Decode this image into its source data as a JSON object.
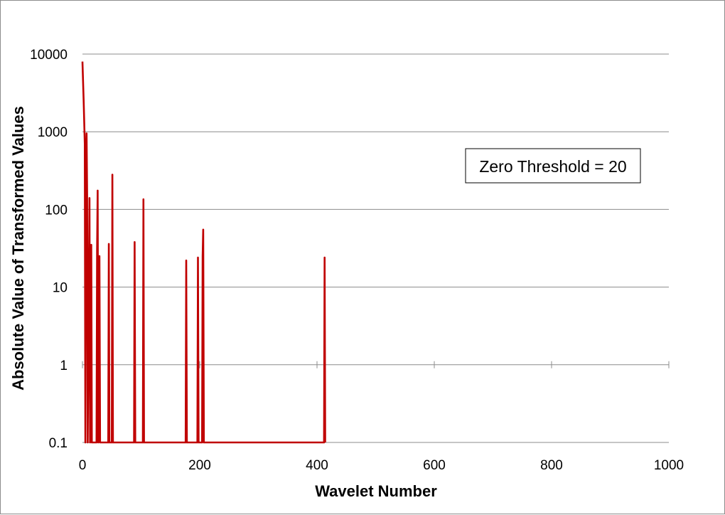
{
  "chart_data": {
    "type": "line",
    "title": "",
    "xlabel": "Wavelet Number",
    "ylabel": "Absolute Value of Transformed Values",
    "x_scale": "linear",
    "y_scale": "log",
    "xlim": [
      0,
      1000
    ],
    "ylim": [
      0.1,
      10000
    ],
    "x_ticks": [
      "0",
      "200",
      "400",
      "600",
      "800",
      "1000"
    ],
    "y_ticks": [
      "0.1",
      "1",
      "10",
      "100",
      "1000",
      "10000"
    ],
    "grid": "horizontal major gridlines",
    "legend": "none",
    "annotation": "Zero Threshold = 20",
    "series": [
      {
        "color": "#c00000",
        "points": [
          [
            0,
            8000
          ],
          [
            2,
            2500
          ],
          [
            4,
            700
          ],
          [
            5,
            0.1
          ],
          [
            6,
            250
          ],
          [
            7,
            950
          ],
          [
            8,
            150
          ],
          [
            9,
            0.1
          ],
          [
            12,
            140
          ],
          [
            13,
            0.1
          ],
          [
            15,
            35
          ],
          [
            16,
            0.1
          ],
          [
            24,
            0.1
          ],
          [
            25,
            30
          ],
          [
            26,
            175
          ],
          [
            27,
            0.1
          ],
          [
            29,
            25
          ],
          [
            30,
            0.1
          ],
          [
            44,
            0.1
          ],
          [
            45,
            36
          ],
          [
            46,
            0.1
          ],
          [
            50,
            0.1
          ],
          [
            51,
            280
          ],
          [
            52,
            0.1
          ],
          [
            88,
            0.1
          ],
          [
            89,
            38
          ],
          [
            90,
            0.1
          ],
          [
            103,
            0.1
          ],
          [
            104,
            135
          ],
          [
            105,
            0.1
          ],
          [
            176,
            0.1
          ],
          [
            177,
            22
          ],
          [
            178,
            0.1
          ],
          [
            196,
            0.1
          ],
          [
            197,
            24
          ],
          [
            198,
            0.1
          ],
          [
            204,
            0.1
          ],
          [
            205,
            25
          ],
          [
            206,
            55
          ],
          [
            207,
            0.1
          ],
          [
            412,
            0.1
          ],
          [
            413,
            24
          ],
          [
            414,
            0.1
          ]
        ]
      }
    ]
  }
}
